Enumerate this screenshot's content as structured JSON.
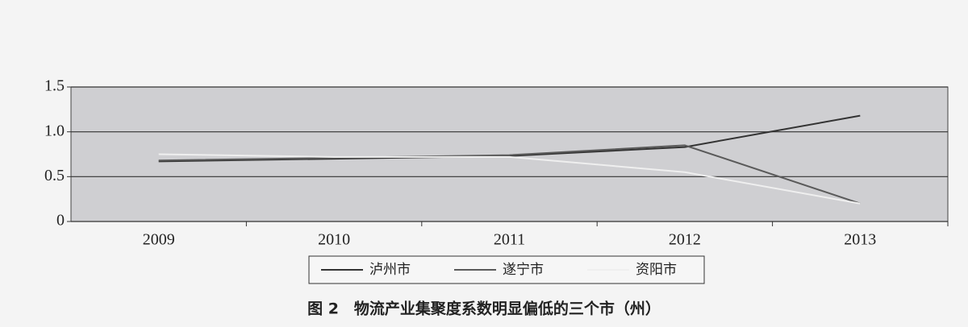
{
  "chart_data": {
    "type": "line",
    "title": "图 2　物流产业集聚度系数明显偏低的三个市（州）",
    "categories": [
      "2009",
      "2010",
      "2011",
      "2012",
      "2013"
    ],
    "series": [
      {
        "name": "泸州市",
        "color": "#333333",
        "values": [
          0.67,
          0.7,
          0.73,
          0.83,
          1.18
        ]
      },
      {
        "name": "遂宁市",
        "color": "#5a5a5a",
        "values": [
          0.68,
          0.71,
          0.74,
          0.85,
          0.2
        ]
      },
      {
        "name": "资阳市",
        "color": "#efefef",
        "values": [
          0.75,
          0.72,
          0.72,
          0.55,
          0.2
        ]
      }
    ],
    "ylim": [
      0,
      1.5
    ],
    "yticks": [
      0,
      0.5,
      {
        "value": 1,
        "label": "1.0"
      },
      1.5
    ],
    "grid": true
  }
}
